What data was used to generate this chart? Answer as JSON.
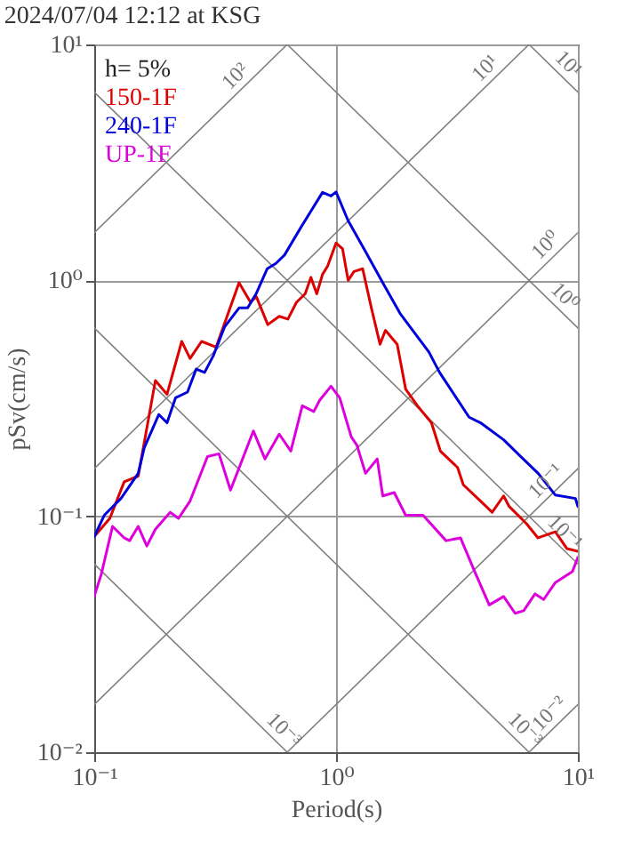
{
  "chart_data": {
    "type": "line",
    "title": "2024/07/04 12:12 at KSG",
    "xlabel": "Period(s)",
    "ylabel": "pSv(cm/s)",
    "log": "xy",
    "grid": true,
    "legend": "top left",
    "xlim": [
      0.1,
      10
    ],
    "ylim": [
      0.01,
      10
    ],
    "xticks": [
      {
        "value": 0.1,
        "label": "10⁻¹"
      },
      {
        "value": 1,
        "label": "10⁰"
      },
      {
        "value": 10,
        "label": "10¹"
      }
    ],
    "yticks": [
      {
        "value": 0.01,
        "label": "10⁻²"
      },
      {
        "value": 0.1,
        "label": "10⁻¹"
      },
      {
        "value": 1,
        "label": "10⁰"
      },
      {
        "value": 10,
        "label": "10¹"
      }
    ],
    "annotations": [
      "h= 5%",
      {
        "text": "10²",
        "x": 0.42,
        "y": 6.68
      },
      {
        "text": "10¹",
        "x": 4.54,
        "y": 7.23
      },
      {
        "text": "10¹",
        "x": 8.34,
        "y": 7.53
      },
      {
        "text": "10⁰",
        "x": 8.07,
        "y": 1.285
      },
      {
        "text": "10⁰",
        "x": 8.07,
        "y": 0.778
      },
      {
        "text": "10⁻¹",
        "x": 8.07,
        "y": 0.1285
      },
      {
        "text": "10⁻¹",
        "x": 8.07,
        "y": 0.0778
      },
      {
        "text": "10⁻³",
        "x": 0.556,
        "y": 0.0113
      },
      {
        "text": "10⁻³",
        "x": 5.53,
        "y": 0.01135
      },
      {
        "text": "10⁻²",
        "x": 8.34,
        "y": 0.01327
      }
    ],
    "series": [
      {
        "name": "150-1F",
        "color": "#dd0000",
        "x": [
          0.1,
          0.116,
          0.133,
          0.152,
          0.179,
          0.2,
          0.23,
          0.249,
          0.278,
          0.319,
          0.397,
          0.443,
          0.468,
          0.522,
          0.582,
          0.632,
          0.686,
          0.745,
          0.787,
          0.832,
          0.879,
          0.923,
          1.0,
          1.064,
          1.122,
          1.186,
          1.288,
          1.4,
          1.52,
          1.6,
          1.79,
          1.94,
          2.17,
          2.48,
          2.7,
          3.18,
          3.36,
          3.96,
          4.42,
          4.93,
          5.2,
          6.13,
          6.84,
          8.07,
          9.0,
          10
        ],
        "values": [
          0.082,
          0.098,
          0.14,
          0.148,
          0.376,
          0.329,
          0.551,
          0.467,
          0.551,
          0.521,
          0.977,
          0.807,
          0.853,
          0.649,
          0.704,
          0.685,
          0.807,
          0.877,
          1.03,
          0.877,
          1.06,
          1.15,
          1.44,
          1.36,
          1.0,
          1.09,
          1.12,
          0.764,
          0.536,
          0.614,
          0.536,
          0.346,
          0.294,
          0.249,
          0.189,
          0.161,
          0.136,
          0.116,
          0.104,
          0.122,
          0.11,
          0.093,
          0.081,
          0.086,
          0.073,
          0.071
        ]
      },
      {
        "name": "240-1F",
        "color": "#0000dd",
        "x": [
          0.1,
          0.11,
          0.129,
          0.152,
          0.161,
          0.185,
          0.2,
          0.217,
          0.243,
          0.264,
          0.286,
          0.311,
          0.346,
          0.397,
          0.431,
          0.468,
          0.519,
          0.564,
          0.612,
          0.721,
          0.879,
          0.953,
          1.0,
          1.122,
          1.321,
          1.56,
          1.84,
          2.42,
          2.68,
          3.55,
          3.96,
          4.93,
          5.81,
          6.85,
          8.07,
          9.77,
          10
        ],
        "values": [
          0.082,
          0.101,
          0.119,
          0.152,
          0.195,
          0.27,
          0.249,
          0.318,
          0.336,
          0.421,
          0.407,
          0.48,
          0.635,
          0.764,
          0.764,
          0.881,
          1.12,
          1.18,
          1.28,
          1.7,
          2.36,
          2.28,
          2.37,
          1.79,
          1.33,
          0.977,
          0.724,
          0.497,
          0.407,
          0.263,
          0.249,
          0.211,
          0.179,
          0.152,
          0.123,
          0.119,
          0.11
        ]
      },
      {
        "name": "UP-1F",
        "color": "#dd00dd",
        "x": [
          0.1,
          0.107,
          0.119,
          0.133,
          0.14,
          0.152,
          0.165,
          0.179,
          0.206,
          0.223,
          0.249,
          0.294,
          0.328,
          0.366,
          0.455,
          0.508,
          0.582,
          0.65,
          0.725,
          0.809,
          0.855,
          0.953,
          1.035,
          1.156,
          1.22,
          1.324,
          1.48,
          1.56,
          1.74,
          1.94,
          2.29,
          2.85,
          3.27,
          3.74,
          4.3,
          4.93,
          5.5,
          5.97,
          6.65,
          7.22,
          8.07,
          9.5,
          10
        ],
        "values": [
          0.0457,
          0.0569,
          0.0906,
          0.081,
          0.0788,
          0.0906,
          0.0748,
          0.0881,
          0.104,
          0.098,
          0.116,
          0.179,
          0.184,
          0.129,
          0.23,
          0.175,
          0.223,
          0.189,
          0.294,
          0.278,
          0.31,
          0.356,
          0.318,
          0.217,
          0.2,
          0.152,
          0.175,
          0.122,
          0.126,
          0.101,
          0.101,
          0.0788,
          0.081,
          0.0584,
          0.0421,
          0.0457,
          0.0388,
          0.0398,
          0.0469,
          0.0444,
          0.0524,
          0.0584,
          0.067
        ]
      },
      {
        "color": "#808080",
        "x": [
          0.1,
          0.628
        ],
        "values": [
          1.592,
          10
        ]
      },
      {
        "color": "#808080",
        "x": [
          0.1,
          6.28
        ],
        "values": [
          0.1592,
          10
        ]
      },
      {
        "color": "#808080",
        "x": [
          0.1,
          10
        ],
        "values": [
          0.01592,
          1.592
        ]
      },
      {
        "color": "#808080",
        "x": [
          0.628,
          10
        ],
        "values": [
          0.01,
          0.1592
        ]
      },
      {
        "color": "#808080",
        "x": [
          6.28,
          10
        ],
        "values": [
          0.01,
          0.01592
        ]
      },
      {
        "color": "#808080",
        "x": [
          6.28,
          10
        ],
        "values": [
          10,
          6.28
        ]
      },
      {
        "color": "#808080",
        "x": [
          0.628,
          10
        ],
        "values": [
          10,
          0.628
        ]
      },
      {
        "color": "#808080",
        "x": [
          0.1,
          10
        ],
        "values": [
          6.28,
          0.0628
        ]
      },
      {
        "color": "#808080",
        "x": [
          0.1,
          6.28
        ],
        "values": [
          0.628,
          0.01
        ]
      },
      {
        "color": "#808080",
        "x": [
          0.1,
          0.628
        ],
        "values": [
          0.0628,
          0.01
        ]
      }
    ]
  }
}
